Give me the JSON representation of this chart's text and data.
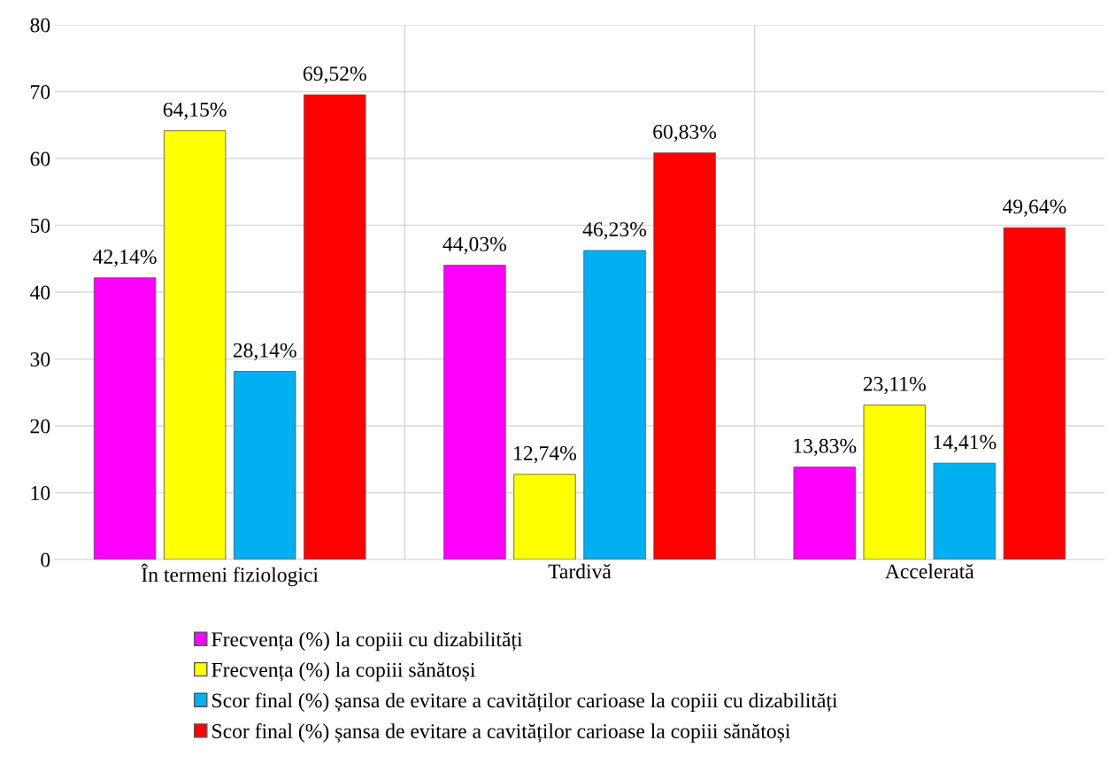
{
  "chart_data": {
    "type": "bar",
    "categories": [
      "În termeni fiziologici",
      "Tardivă",
      "Accelerată"
    ],
    "series": [
      {
        "name": "Frecvența (%) la copiii cu dizabilități",
        "color": "#ff00ff",
        "values": [
          42.14,
          44.03,
          13.83
        ],
        "value_labels": [
          "42,14%",
          "44,03%",
          "13,83%"
        ]
      },
      {
        "name": "Frecvența (%) la copiii sănătoși",
        "color": "#ffff00",
        "values": [
          64.15,
          12.74,
          23.11
        ],
        "value_labels": [
          "64,15%",
          "12,74%",
          "23,11%"
        ]
      },
      {
        "name": "Scor final (%) șansa de evitare a cavităților carioase la copiii cu dizabilități",
        "color": "#00b0f0",
        "values": [
          28.14,
          46.23,
          14.41
        ],
        "value_labels": [
          "28,14%",
          "46,23%",
          "14,41%"
        ]
      },
      {
        "name": "Scor final (%) șansa de evitare a cavităților carioase la copiii sănătoși",
        "color": "#ff0000",
        "values": [
          69.52,
          60.83,
          49.64
        ],
        "value_labels": [
          "69,52%",
          "60,83%",
          "49,64%"
        ]
      }
    ],
    "ylim": [
      0,
      80
    ],
    "yticks": [
      0,
      10,
      20,
      30,
      40,
      50,
      60,
      70,
      80
    ],
    "grid": true,
    "legend": "bottom"
  }
}
